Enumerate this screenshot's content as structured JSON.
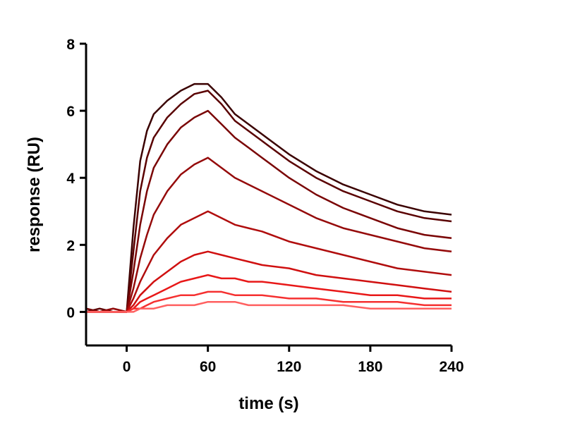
{
  "chart_data": {
    "type": "line",
    "x_label": "time (s)",
    "y_label": "response (RU)",
    "xlim": [
      -30,
      240
    ],
    "xticks": [
      0,
      60,
      120,
      180,
      240
    ],
    "ylim": [
      -1,
      8
    ],
    "yticks": [
      0,
      2,
      4,
      6,
      8
    ],
    "grid": false,
    "x": [
      -30,
      -20,
      -10,
      0,
      5,
      10,
      15,
      20,
      30,
      40,
      50,
      60,
      70,
      80,
      90,
      100,
      120,
      140,
      160,
      180,
      200,
      220,
      240
    ],
    "series": [
      {
        "color": "#3a0000",
        "values": [
          0.1,
          0.0,
          0.1,
          0.0,
          2.5,
          4.5,
          5.4,
          5.9,
          6.3,
          6.6,
          6.8,
          6.8,
          6.4,
          5.9,
          5.6,
          5.3,
          4.7,
          4.2,
          3.8,
          3.5,
          3.2,
          3.0,
          2.9
        ]
      },
      {
        "color": "#5a0000",
        "values": [
          0.0,
          0.1,
          0.0,
          0.0,
          1.8,
          3.6,
          4.6,
          5.2,
          5.8,
          6.2,
          6.5,
          6.6,
          6.2,
          5.7,
          5.4,
          5.1,
          4.5,
          4.0,
          3.6,
          3.3,
          3.0,
          2.8,
          2.7
        ]
      },
      {
        "color": "#7a0505",
        "values": [
          0.1,
          0.0,
          0.0,
          0.0,
          1.2,
          2.6,
          3.6,
          4.3,
          5.0,
          5.5,
          5.8,
          6.0,
          5.6,
          5.2,
          4.9,
          4.6,
          4.0,
          3.5,
          3.1,
          2.8,
          2.5,
          2.3,
          2.2
        ]
      },
      {
        "color": "#950a0a",
        "values": [
          0.0,
          0.0,
          0.1,
          0.0,
          0.7,
          1.6,
          2.3,
          2.9,
          3.6,
          4.1,
          4.4,
          4.6,
          4.3,
          4.0,
          3.8,
          3.6,
          3.2,
          2.8,
          2.5,
          2.3,
          2.1,
          1.9,
          1.8
        ]
      },
      {
        "color": "#b00d0d",
        "values": [
          0.0,
          0.0,
          0.0,
          0.0,
          0.4,
          0.9,
          1.3,
          1.7,
          2.2,
          2.6,
          2.8,
          3.0,
          2.8,
          2.6,
          2.5,
          2.4,
          2.1,
          1.9,
          1.7,
          1.5,
          1.3,
          1.2,
          1.1
        ]
      },
      {
        "color": "#d01010",
        "values": [
          0.0,
          0.0,
          0.0,
          0.0,
          0.2,
          0.5,
          0.7,
          0.9,
          1.2,
          1.5,
          1.7,
          1.8,
          1.7,
          1.6,
          1.5,
          1.4,
          1.3,
          1.1,
          1.0,
          0.9,
          0.8,
          0.7,
          0.6
        ]
      },
      {
        "color": "#e81818",
        "values": [
          0.0,
          0.0,
          0.0,
          0.0,
          0.1,
          0.3,
          0.4,
          0.5,
          0.7,
          0.9,
          1.0,
          1.1,
          1.0,
          1.0,
          0.9,
          0.9,
          0.8,
          0.7,
          0.6,
          0.5,
          0.5,
          0.4,
          0.4
        ]
      },
      {
        "color": "#f53030",
        "values": [
          0.0,
          0.0,
          0.0,
          0.0,
          0.1,
          0.1,
          0.2,
          0.3,
          0.4,
          0.5,
          0.5,
          0.6,
          0.6,
          0.5,
          0.5,
          0.5,
          0.4,
          0.4,
          0.3,
          0.3,
          0.3,
          0.2,
          0.2
        ]
      },
      {
        "color": "#ff6060",
        "values": [
          0.0,
          0.0,
          0.0,
          0.0,
          0.0,
          0.1,
          0.1,
          0.1,
          0.2,
          0.2,
          0.2,
          0.3,
          0.3,
          0.3,
          0.2,
          0.2,
          0.2,
          0.2,
          0.2,
          0.1,
          0.1,
          0.1,
          0.1
        ]
      }
    ]
  }
}
